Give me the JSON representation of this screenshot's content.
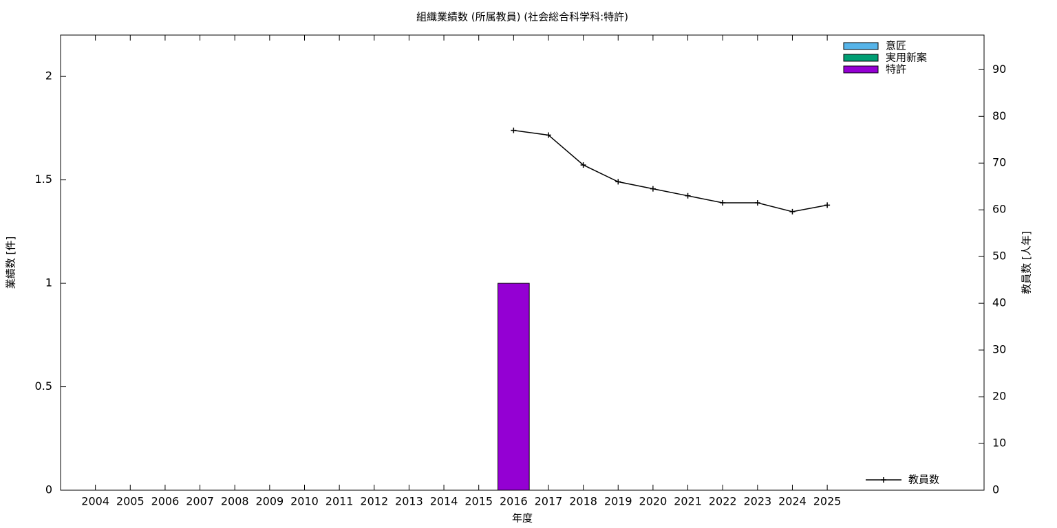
{
  "chart_data": {
    "type": "bar+line",
    "title": "組織業績数 (所属教員) (社会総合科学科:特許)",
    "xlabel": "年度",
    "ylabel": "業績数 [件]",
    "y2label": "教員数 [人年]",
    "categories": [
      "2004",
      "2005",
      "2006",
      "2007",
      "2008",
      "2009",
      "2010",
      "2011",
      "2012",
      "2013",
      "2014",
      "2015",
      "2016",
      "2017",
      "2018",
      "2019",
      "2020",
      "2021",
      "2022",
      "2023",
      "2024",
      "2025"
    ],
    "series": [
      {
        "name": "意匠",
        "type": "bar",
        "color": "#56b4e9",
        "values": [
          0,
          0,
          0,
          0,
          0,
          0,
          0,
          0,
          0,
          0,
          0,
          0,
          0,
          0,
          0,
          0,
          0,
          0,
          0,
          0,
          0,
          0
        ]
      },
      {
        "name": "実用新案",
        "type": "bar",
        "color": "#009e73",
        "values": [
          0,
          0,
          0,
          0,
          0,
          0,
          0,
          0,
          0,
          0,
          0,
          0,
          0,
          0,
          0,
          0,
          0,
          0,
          0,
          0,
          0,
          0
        ]
      },
      {
        "name": "特許",
        "type": "bar",
        "color": "#9400d3",
        "values": [
          0,
          0,
          0,
          0,
          0,
          0,
          0,
          0,
          0,
          0,
          0,
          0,
          1,
          0,
          0,
          0,
          0,
          0,
          0,
          0,
          0,
          0
        ]
      },
      {
        "name": "教員数",
        "type": "line",
        "axis": "y2",
        "color": "#000000",
        "values": [
          null,
          null,
          null,
          null,
          null,
          null,
          null,
          null,
          null,
          null,
          null,
          null,
          77,
          76,
          69.6,
          66,
          64.5,
          63,
          61.5,
          61.5,
          59.6,
          61
        ]
      }
    ],
    "ylim": [
      0,
      2.2
    ],
    "yticks": [
      0,
      0.5,
      1,
      1.5,
      2
    ],
    "y2lim": [
      0,
      97.4
    ],
    "y2ticks": [
      0,
      10,
      20,
      30,
      40,
      50,
      60,
      70,
      80,
      90
    ],
    "legend": {
      "bars": "top-right",
      "line": "bottom-right"
    }
  }
}
